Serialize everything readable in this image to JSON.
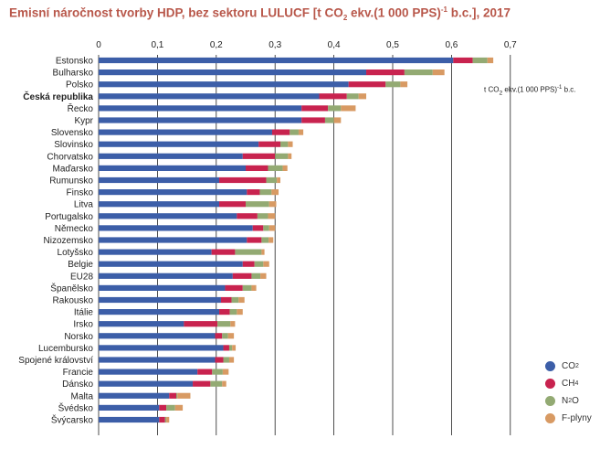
{
  "title": {
    "text_before": "Emisní náročnost tvorby HDP, bez sektoru LULUCF [t CO",
    "sub": "2",
    "text_mid": " ekv.(1 000 PPS)",
    "sup": "-1",
    "text_after": " b.c.], 2017"
  },
  "unit_label": {
    "before": "t CO",
    "sub": "2",
    "mid": " ekv.(1 000 PPS)",
    "sup": "-1",
    "after": " b.c."
  },
  "legend": [
    {
      "label": "CO",
      "sub": "2",
      "color": "#3c5ea8"
    },
    {
      "label": "CH",
      "sub": "4",
      "color": "#c8234f"
    },
    {
      "label": "N",
      "sub": "2",
      "label_after": "O",
      "color": "#93aa73"
    },
    {
      "label": "F-plyny",
      "sub": "",
      "color": "#d89a63"
    }
  ],
  "chart_data": {
    "type": "bar",
    "orientation": "horizontal",
    "stacked": true,
    "xlim": [
      0,
      0.7
    ],
    "xticks": [
      "0",
      "0,1",
      "0,2",
      "0,3",
      "0,4",
      "0,5",
      "0,6",
      "0,7"
    ],
    "highlight_category": "Česká republika",
    "categories": [
      "Estonsko",
      "Bulharsko",
      "Polsko",
      "Česká republika",
      "Řecko",
      "Kypr",
      "Slovensko",
      "Slovinsko",
      "Chorvatsko",
      "Maďarsko",
      "Rumunsko",
      "Finsko",
      "Litva",
      "Portugalsko",
      "Německo",
      "Nizozemsko",
      "Lotyšsko",
      "Belgie",
      "EU28",
      "Španělsko",
      "Rakousko",
      "Itálie",
      "Irsko",
      "Norsko",
      "Lucembursko",
      "Spojené království",
      "Francie",
      "Dánsko",
      "Malta",
      "Švédsko",
      "Švýcarsko"
    ],
    "series": [
      {
        "name": "CO2",
        "color": "#3c5ea8",
        "values": [
          0.603,
          0.455,
          0.425,
          0.375,
          0.345,
          0.345,
          0.295,
          0.272,
          0.245,
          0.25,
          0.205,
          0.252,
          0.205,
          0.235,
          0.262,
          0.252,
          0.192,
          0.245,
          0.228,
          0.215,
          0.208,
          0.205,
          0.145,
          0.198,
          0.212,
          0.198,
          0.168,
          0.16,
          0.12,
          0.103,
          0.103
        ]
      },
      {
        "name": "CH4",
        "color": "#c8234f",
        "values": [
          0.033,
          0.065,
          0.063,
          0.047,
          0.045,
          0.04,
          0.03,
          0.037,
          0.055,
          0.038,
          0.08,
          0.022,
          0.045,
          0.035,
          0.018,
          0.025,
          0.04,
          0.02,
          0.032,
          0.03,
          0.018,
          0.018,
          0.057,
          0.012,
          0.01,
          0.014,
          0.025,
          0.03,
          0.012,
          0.012,
          0.01
        ]
      },
      {
        "name": "N2O",
        "color": "#93aa73",
        "values": [
          0.025,
          0.048,
          0.025,
          0.02,
          0.022,
          0.015,
          0.015,
          0.013,
          0.022,
          0.025,
          0.018,
          0.02,
          0.04,
          0.018,
          0.01,
          0.012,
          0.045,
          0.015,
          0.015,
          0.015,
          0.012,
          0.012,
          0.022,
          0.01,
          0.005,
          0.01,
          0.018,
          0.02,
          0.002,
          0.015,
          0.002
        ]
      },
      {
        "name": "F-plyny",
        "color": "#d89a63",
        "values": [
          0.01,
          0.02,
          0.012,
          0.013,
          0.025,
          0.012,
          0.008,
          0.008,
          0.006,
          0.008,
          0.006,
          0.012,
          0.012,
          0.012,
          0.01,
          0.008,
          0.005,
          0.01,
          0.01,
          0.008,
          0.01,
          0.01,
          0.008,
          0.01,
          0.006,
          0.008,
          0.01,
          0.007,
          0.022,
          0.013,
          0.005
        ]
      }
    ]
  }
}
